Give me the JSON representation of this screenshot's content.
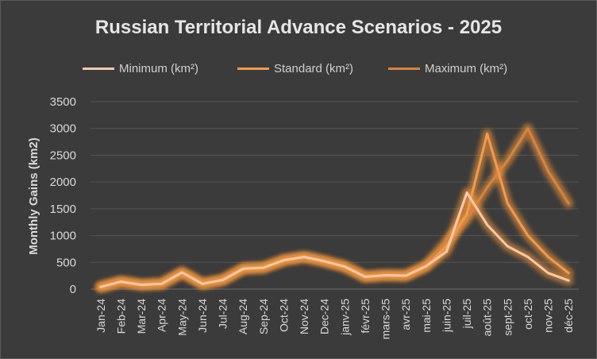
{
  "chart_data": {
    "type": "line",
    "title": "Russian Territorial  Advance Scenarios - 2025",
    "ylabel": "Monthly Gains (km2)",
    "xlabel": "",
    "ylim": [
      0,
      3500
    ],
    "yticks": [
      "0",
      "500",
      "1000",
      "1500",
      "2000",
      "2500",
      "3000",
      "3500"
    ],
    "grid": true,
    "legend_position": "top",
    "categories": [
      "Jan-24",
      "Feb-24",
      "Mar-24",
      "Apr-24",
      "May-24",
      "Jun-24",
      "Jul-24",
      "Aug-24",
      "Sep-24",
      "Oct-24",
      "Nov-24",
      "Dec-24",
      "janv-25",
      "févr-25",
      "mars-25",
      "avr-25",
      "mai-25",
      "juin-25",
      "juil-25",
      "août-25",
      "sept-25",
      "oct-25",
      "nov-25",
      "déc-25"
    ],
    "series": [
      {
        "name": "Minimum (km²)",
        "color": "#f7c9ad",
        "values": [
          40,
          140,
          80,
          100,
          310,
          100,
          170,
          380,
          400,
          540,
          600,
          520,
          420,
          230,
          260,
          250,
          430,
          700,
          1800,
          1200,
          800,
          600,
          300,
          160
        ]
      },
      {
        "name": "Standard (km²)",
        "color": "#f29a4e",
        "values": [
          40,
          140,
          80,
          100,
          310,
          100,
          170,
          380,
          400,
          540,
          600,
          520,
          420,
          230,
          260,
          250,
          430,
          800,
          1400,
          2900,
          1600,
          1000,
          600,
          300
        ]
      },
      {
        "name": "Maximum (km²)",
        "color": "#d6843e",
        "values": [
          40,
          140,
          80,
          100,
          310,
          100,
          170,
          380,
          400,
          540,
          600,
          520,
          420,
          230,
          260,
          250,
          430,
          900,
          1300,
          1900,
          2400,
          3000,
          2200,
          1600
        ]
      }
    ]
  }
}
